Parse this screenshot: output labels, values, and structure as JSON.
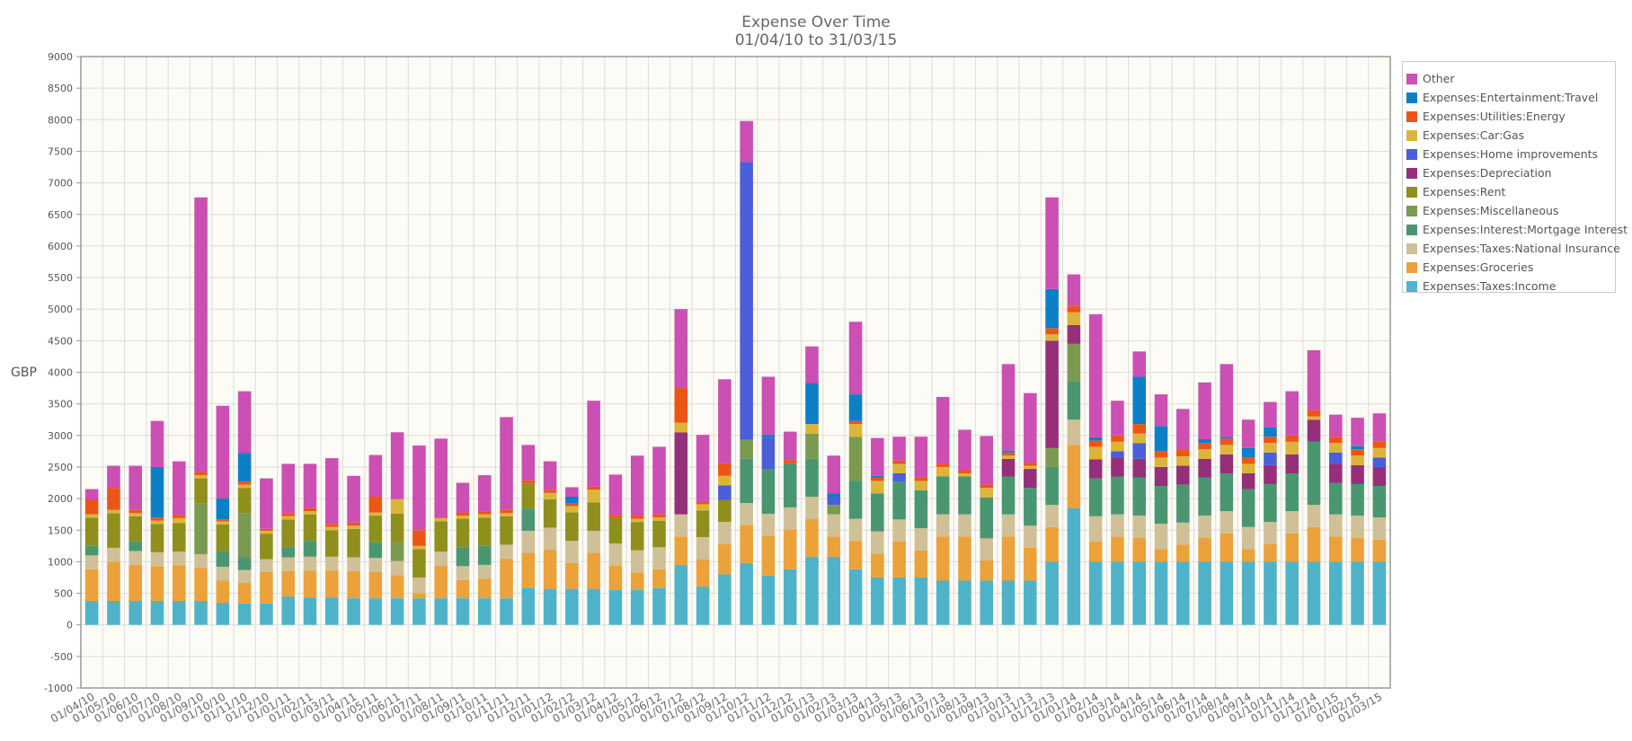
{
  "chart_data": {
    "type": "bar",
    "stacked": true,
    "title": "Expense Over Time",
    "subtitle": "01/04/10 to 31/03/15",
    "ylabel": "GBP",
    "xlabel": "",
    "ylim": [
      -1000,
      9000
    ],
    "yticks": [
      -1000,
      -500,
      0,
      500,
      1000,
      1500,
      2000,
      2500,
      3000,
      3500,
      4000,
      4500,
      5000,
      5500,
      6000,
      6500,
      7000,
      7500,
      8000,
      8500,
      9000
    ],
    "grid": true,
    "legend_position": "right",
    "categories": [
      "01/04/10",
      "01/05/10",
      "01/06/10",
      "01/07/10",
      "01/08/10",
      "01/09/10",
      "01/10/10",
      "01/11/10",
      "01/12/10",
      "01/01/11",
      "01/02/11",
      "01/03/11",
      "01/04/11",
      "01/05/11",
      "01/06/11",
      "01/07/11",
      "01/08/11",
      "01/09/11",
      "01/10/11",
      "01/11/11",
      "01/12/11",
      "01/01/12",
      "01/02/12",
      "01/03/12",
      "01/04/12",
      "01/05/12",
      "01/06/12",
      "01/07/12",
      "01/08/12",
      "01/09/12",
      "01/10/12",
      "01/11/12",
      "01/12/12",
      "01/01/13",
      "01/02/13",
      "01/03/13",
      "01/04/13",
      "01/05/13",
      "01/06/13",
      "01/07/13",
      "01/08/13",
      "01/09/13",
      "01/10/13",
      "01/11/13",
      "01/12/13",
      "01/01/14",
      "01/02/14",
      "01/03/14",
      "01/04/14",
      "01/05/14",
      "01/06/14",
      "01/07/14",
      "01/08/14",
      "01/09/14",
      "01/10/14",
      "01/11/14",
      "01/12/14",
      "01/01/15",
      "01/02/15",
      "01/03/15"
    ],
    "series": [
      {
        "name": "Expenses:Taxes:Income",
        "color": "#4eb3c9",
        "values": [
          380,
          380,
          380,
          380,
          380,
          380,
          350,
          340,
          340,
          450,
          430,
          430,
          420,
          420,
          420,
          420,
          420,
          420,
          420,
          420,
          580,
          570,
          570,
          570,
          550,
          550,
          580,
          950,
          600,
          800,
          980,
          780,
          880,
          1080,
          1080,
          880,
          750,
          750,
          750,
          700,
          700,
          700,
          700,
          700,
          1000,
          1850,
          1000,
          1000,
          1000,
          1000,
          1000,
          1000,
          1000,
          1000,
          1000,
          1000,
          1000,
          1000,
          1000,
          1000
        ]
      },
      {
        "name": "Expenses:Groceries",
        "color": "#eba23a",
        "values": [
          500,
          620,
          570,
          550,
          560,
          520,
          350,
          330,
          500,
          400,
          430,
          430,
          430,
          420,
          370,
          80,
          520,
          290,
          310,
          630,
          560,
          620,
          410,
          570,
          390,
          280,
          300,
          450,
          440,
          480,
          600,
          630,
          630,
          600,
          320,
          450,
          380,
          570,
          430,
          700,
          700,
          320,
          700,
          520,
          550,
          1000,
          320,
          400,
          380,
          200,
          270,
          380,
          450,
          200,
          280,
          450,
          550,
          400,
          380,
          350
        ]
      },
      {
        "name": "Expenses:Taxes:National Insurance",
        "color": "#cfc097",
        "values": [
          220,
          220,
          220,
          220,
          220,
          220,
          220,
          200,
          200,
          220,
          220,
          220,
          220,
          220,
          220,
          250,
          220,
          220,
          220,
          220,
          350,
          350,
          350,
          350,
          350,
          350,
          350,
          350,
          350,
          350,
          350,
          350,
          350,
          350,
          350,
          350,
          350,
          350,
          350,
          350,
          350,
          350,
          350,
          350,
          350,
          400,
          400,
          350,
          350,
          400,
          350,
          350,
          350,
          350,
          350,
          350,
          350,
          350,
          350,
          350
        ]
      },
      {
        "name": "Expenses:Interest:Mortgage Interest",
        "color": "#4a9671",
        "values": [
          150,
          0,
          150,
          0,
          0,
          0,
          250,
          200,
          0,
          150,
          250,
          0,
          0,
          250,
          0,
          0,
          0,
          300,
          300,
          0,
          350,
          0,
          0,
          0,
          0,
          0,
          0,
          0,
          0,
          0,
          700,
          700,
          700,
          600,
          0,
          600,
          600,
          600,
          600,
          600,
          600,
          650,
          600,
          600,
          600,
          600,
          600,
          600,
          600,
          600,
          600,
          600,
          600,
          600,
          600,
          600,
          1000,
          500,
          500,
          500
        ]
      },
      {
        "name": "Expenses:Miscellaneous",
        "color": "#7a9a50",
        "values": [
          0,
          0,
          0,
          0,
          0,
          800,
          0,
          700,
          0,
          0,
          0,
          0,
          0,
          0,
          300,
          0,
          0,
          0,
          0,
          0,
          0,
          0,
          0,
          0,
          0,
          0,
          0,
          0,
          0,
          0,
          300,
          0,
          0,
          400,
          150,
          700,
          0,
          0,
          0,
          0,
          0,
          0,
          0,
          0,
          300,
          600,
          0,
          0,
          0,
          0,
          0,
          0,
          0,
          0,
          0,
          0,
          0,
          0,
          0,
          0
        ]
      },
      {
        "name": "Expenses:Rent",
        "color": "#8f8f1e",
        "values": [
          450,
          550,
          400,
          450,
          450,
          400,
          420,
          400,
          400,
          450,
          420,
          420,
          450,
          420,
          450,
          450,
          480,
          450,
          450,
          450,
          400,
          450,
          450,
          450,
          400,
          450,
          420,
          0,
          420,
          350,
          0,
          0,
          0,
          0,
          0,
          0,
          0,
          0,
          0,
          0,
          0,
          0,
          0,
          0,
          0,
          0,
          0,
          0,
          0,
          0,
          0,
          0,
          0,
          0,
          0,
          0,
          0,
          0,
          0,
          0
        ]
      },
      {
        "name": "Expenses:Depreciation",
        "color": "#962f7a",
        "values": [
          0,
          0,
          0,
          0,
          0,
          0,
          0,
          0,
          0,
          0,
          0,
          0,
          0,
          0,
          0,
          0,
          0,
          0,
          0,
          0,
          0,
          0,
          0,
          0,
          0,
          0,
          0,
          1300,
          0,
          0,
          0,
          0,
          0,
          0,
          0,
          0,
          0,
          0,
          0,
          0,
          0,
          0,
          280,
          300,
          1700,
          300,
          300,
          300,
          300,
          300,
          300,
          300,
          300,
          250,
          300,
          300,
          350,
          300,
          300,
          300
        ]
      },
      {
        "name": "Expenses:Home improvements",
        "color": "#4a5fd9",
        "values": [
          0,
          0,
          0,
          0,
          0,
          0,
          0,
          0,
          0,
          0,
          0,
          0,
          0,
          0,
          0,
          0,
          0,
          0,
          0,
          0,
          0,
          0,
          0,
          0,
          0,
          0,
          0,
          0,
          0,
          230,
          4400,
          500,
          0,
          0,
          130,
          0,
          0,
          130,
          0,
          0,
          0,
          0,
          0,
          0,
          0,
          0,
          0,
          100,
          250,
          0,
          0,
          0,
          0,
          0,
          200,
          0,
          0,
          180,
          0,
          150
        ]
      },
      {
        "name": "Expenses:Car:Gas",
        "color": "#dbb53a",
        "values": [
          50,
          50,
          50,
          50,
          80,
          50,
          50,
          50,
          50,
          50,
          50,
          50,
          50,
          50,
          230,
          50,
          50,
          50,
          50,
          50,
          0,
          100,
          100,
          200,
          0,
          50,
          50,
          150,
          100,
          150,
          0,
          0,
          0,
          150,
          0,
          200,
          200,
          150,
          150,
          150,
          50,
          150,
          50,
          50,
          100,
          200,
          200,
          150,
          150,
          150,
          150,
          150,
          150,
          150,
          150,
          200,
          50,
          150,
          150,
          150
        ]
      },
      {
        "name": "Expenses:Utilities:Energy",
        "color": "#ed5517",
        "values": [
          230,
          350,
          50,
          50,
          50,
          50,
          30,
          50,
          30,
          50,
          50,
          50,
          50,
          250,
          0,
          250,
          0,
          50,
          50,
          50,
          50,
          50,
          50,
          50,
          50,
          50,
          50,
          550,
          50,
          200,
          0,
          0,
          50,
          0,
          0,
          50,
          50,
          50,
          50,
          50,
          50,
          50,
          50,
          50,
          100,
          100,
          100,
          100,
          150,
          100,
          100,
          100,
          100,
          100,
          100,
          100,
          100,
          100,
          100,
          100
        ]
      },
      {
        "name": "Expenses:Entertainment:Travel",
        "color": "#0d7fc6",
        "values": [
          0,
          0,
          0,
          800,
          0,
          0,
          330,
          450,
          0,
          0,
          0,
          0,
          0,
          0,
          0,
          0,
          0,
          0,
          0,
          0,
          0,
          0,
          100,
          0,
          0,
          0,
          0,
          0,
          0,
          0,
          0,
          50,
          0,
          650,
          50,
          420,
          30,
          0,
          0,
          0,
          0,
          0,
          30,
          0,
          620,
          0,
          50,
          0,
          750,
          400,
          0,
          60,
          30,
          150,
          150,
          0,
          0,
          0,
          50,
          0
        ]
      },
      {
        "name": "Other",
        "color": "#cc4fb3",
        "values": [
          170,
          350,
          700,
          730,
          850,
          4350,
          1470,
          980,
          800,
          780,
          700,
          1040,
          740,
          660,
          1060,
          1340,
          1260,
          470,
          570,
          1470,
          560,
          450,
          150,
          1360,
          640,
          950,
          1070,
          1250,
          1050,
          1330,
          650,
          920,
          450,
          580,
          600,
          1150,
          600,
          380,
          650,
          1060,
          640,
          770,
          1370,
          1100,
          1450,
          500,
          1950,
          550,
          400,
          500,
          650,
          900,
          1150,
          450,
          400,
          700,
          950,
          350,
          450,
          450
        ]
      }
    ]
  }
}
